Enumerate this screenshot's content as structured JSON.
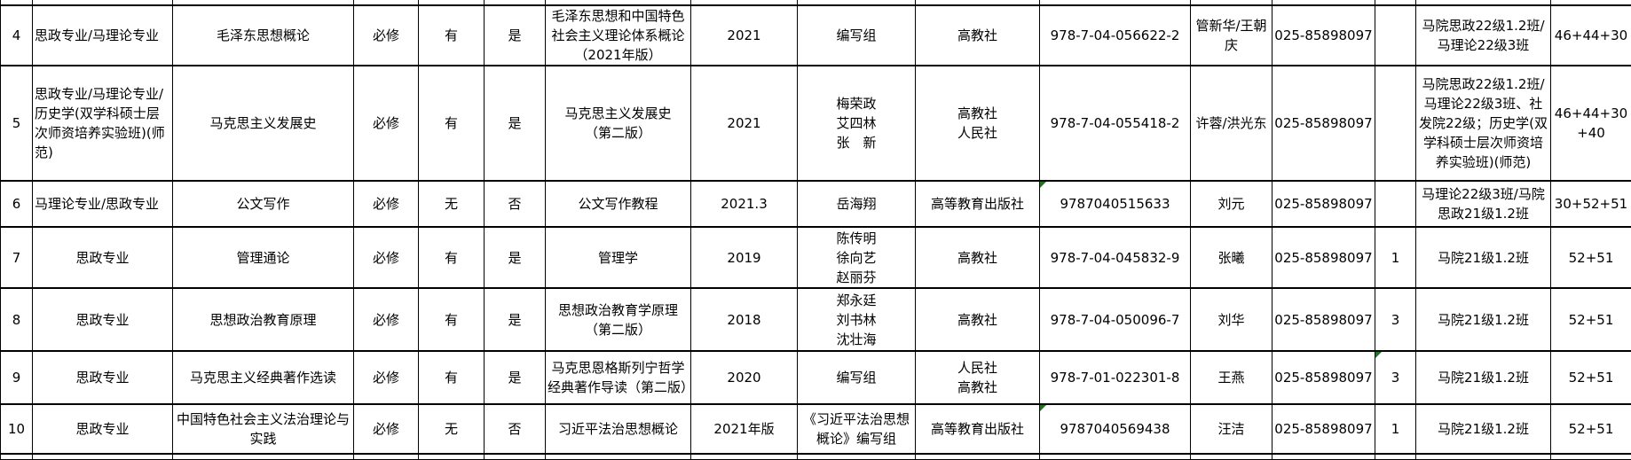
{
  "columns_count": 16,
  "rows": [
    {
      "cells": [
        "4",
        "思政专业/马理论专业",
        "毛泽东思想概论",
        "必修",
        "有",
        "是",
        "毛泽东思想和中国特色社会主义理论体系概论（2021年版）",
        "2021",
        "编写组",
        "高教社",
        "978-7-04-056622-2",
        "管新华/王朝庆",
        "025-85898097",
        "",
        "马院思政22级1.2班/马理论22级3班",
        "46+44+30"
      ],
      "markers": []
    },
    {
      "cells": [
        "5",
        "思政专业/马理论专业/历史学(双学科硕士层次师资培养实验班)(师范)",
        "马克思主义发展史",
        "必修",
        "有",
        "是",
        "马克思主义发展史\n（第二版）",
        "2021",
        "梅荣政\n艾四林\n张　新",
        "高教社\n人民社",
        "978-7-04-055418-2",
        "许蓉/洪光东",
        "025-85898097",
        "",
        "马院思政22级1.2班/马理论22级3班、社发院22级；历史学(双学科硕士层次师资培养实验班)(师范)",
        "46+44+30+40"
      ],
      "markers": []
    },
    {
      "cells": [
        "6",
        "马理论专业/思政专业",
        "公文写作",
        "必修",
        "无",
        "否",
        "公文写作教程",
        "2021.3",
        "岳海翔",
        "高等教育出版社",
        "9787040515633",
        "刘元",
        "025-85898097",
        "",
        "马理论22级3班/马院思政21级1.2班",
        "30+52+51"
      ],
      "markers": [
        10
      ]
    },
    {
      "cells": [
        "7",
        "思政专业",
        "管理通论",
        "必修",
        "有",
        "是",
        "管理学",
        "2019",
        "陈传明\n徐向艺\n赵丽芬",
        "高教社",
        "978-7-04-045832-9",
        "张曦",
        "025-85898097",
        "1",
        "马院21级1.2班",
        "52+51"
      ],
      "markers": []
    },
    {
      "cells": [
        "8",
        "思政专业",
        "思想政治教育原理",
        "必修",
        "有",
        "是",
        "思想政治教育学原理\n（第二版）",
        "2018",
        "郑永廷\n刘书林\n沈壮海",
        "高教社",
        "978-7-04-050096-7",
        "刘华",
        "025-85898097",
        "3",
        "马院21级1.2班",
        "52+51"
      ],
      "markers": []
    },
    {
      "cells": [
        "9",
        "思政专业",
        "马克思主义经典著作选读",
        "必修",
        "有",
        "是",
        "马克思恩格斯列宁哲学经典著作导读（第二版）",
        "2020",
        "编写组",
        "人民社\n高教社",
        "978-7-01-022301-8",
        "王燕",
        "025-85898097",
        "3",
        "马院21级1.2班",
        "52+51"
      ],
      "markers": [
        13
      ]
    },
    {
      "cells": [
        "10",
        "思政专业",
        "中国特色社会主义法治理论与实践",
        "必修",
        "无",
        "否",
        "习近平法治思想概论",
        "2021年版",
        "《习近平法治思想概论》编写组",
        "高等教育出版社",
        "9787040569438",
        "汪洁",
        "025-85898097",
        "1",
        "马院21级1.2班",
        "52+51"
      ],
      "markers": [
        10
      ]
    }
  ],
  "marker_color": "#1a7a1a"
}
